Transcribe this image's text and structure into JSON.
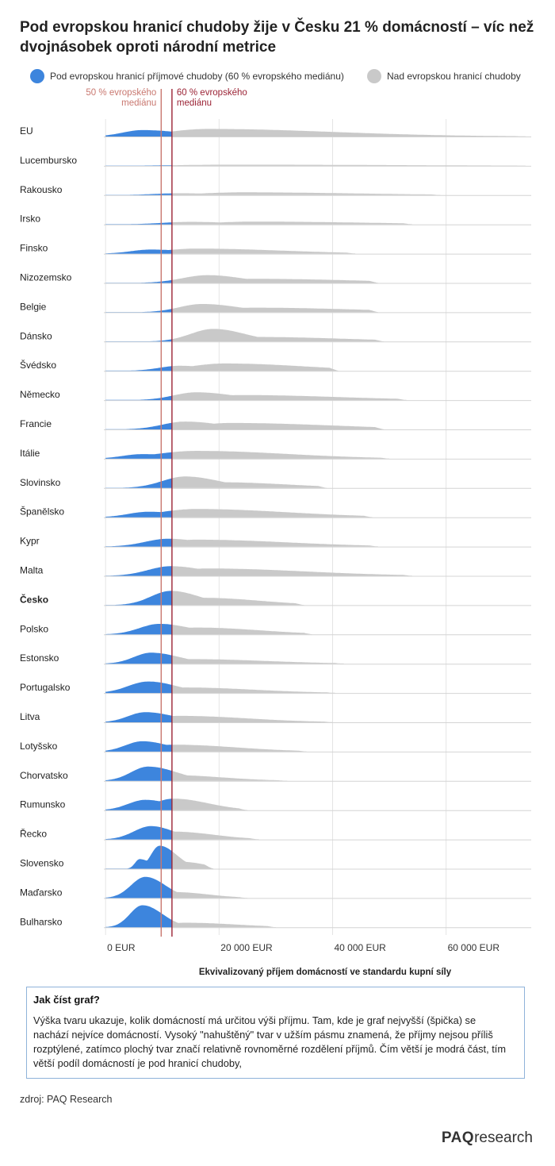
{
  "title": "Pod evropskou hranicí chudoby žije v Česku 21 % domácností – víc než dvojnásobek oproti národní metrice",
  "legend": {
    "below": {
      "label": "Pod evropskou hranicí příjmové chudoby (60 % evropského mediánu)",
      "color": "#3d85dd"
    },
    "above": {
      "label": "Nad evropskou hranicí chudoby",
      "color": "#c9c9c9"
    }
  },
  "note": {
    "heading": "Jak číst graf?",
    "text": "Výška tvaru ukazuje, kolik domácností má určitou výši příjmu. Tam, kde je graf nejvyšší (špička) se nachází nejvíce domácností. Vysoký \"nahuštěný\" tvar v užším pásmu znamená, že příjmy nejsou příliš rozptýlené, zatímco plochý tvar značí relativně rovnoměrné rozdělení příjmů. Čím větší je modrá část, tím větší podíl domácností je pod hranicí chudoby,"
  },
  "source": "zdroj: PAQ Research",
  "logo": {
    "bold": "PAQ",
    "rest": "research"
  },
  "chart_data": {
    "type": "area",
    "subtype": "ridgeline density",
    "xlabel": "Ekvivalizovaný příjem domácností ve standardu kupní síly",
    "xlim": [
      -300,
      75000
    ],
    "xticks": [
      {
        "value": 0,
        "label": "0  EUR"
      },
      {
        "value": 20000,
        "label": "20 000 EUR"
      },
      {
        "value": 40000,
        "label": "40 000 EUR"
      },
      {
        "value": 60000,
        "label": "60 000 EUR"
      }
    ],
    "reference_lines": [
      {
        "value": 9800,
        "label_lines": [
          "50 % evropského",
          "mediánu"
        ],
        "color": "#c97870",
        "label_side": "left"
      },
      {
        "value": 11700,
        "label_lines": [
          "60 % evropského",
          "mediánu"
        ],
        "color": "#9b2335",
        "label_side": "right"
      }
    ],
    "poverty_line": 11700,
    "colors": {
      "below": "#3d85dd",
      "above": "#c9c9c9",
      "grid": "#e4e4e4",
      "baseline": "#d4d4d4"
    },
    "highlight": "Česko",
    "series": [
      {
        "name": "EU",
        "max_income": 74000,
        "peak": [
          [
            6500,
            0.28
          ],
          [
            18000,
            0.33
          ]
        ],
        "spread": [
          [
            3500,
            7000
          ],
          [
            7000,
            22000
          ]
        ]
      },
      {
        "name": "Lucembursko",
        "max_income": 74000,
        "peak": [
          [
            22000,
            0.05
          ]
        ],
        "spread": [
          [
            9000,
            30000
          ]
        ]
      },
      {
        "name": "Rakousko",
        "max_income": 59000,
        "peak": [
          [
            13000,
            0.08
          ],
          [
            24000,
            0.12
          ]
        ],
        "spread": [
          [
            4500,
            7000
          ],
          [
            7000,
            20000
          ]
        ]
      },
      {
        "name": "Irsko",
        "max_income": 54000,
        "peak": [
          [
            15000,
            0.11
          ],
          [
            26000,
            0.12
          ]
        ],
        "spread": [
          [
            5000,
            7000
          ],
          [
            7000,
            20000
          ]
        ]
      },
      {
        "name": "Finsko",
        "max_income": 44000,
        "peak": [
          [
            8000,
            0.18
          ],
          [
            16000,
            0.22
          ]
        ],
        "spread": [
          [
            3500,
            6000
          ],
          [
            6000,
            15000
          ]
        ]
      },
      {
        "name": "Nizozemsko",
        "max_income": 48000,
        "peak": [
          [
            18000,
            0.34
          ],
          [
            26000,
            0.18
          ]
        ],
        "spread": [
          [
            4500,
            6000
          ],
          [
            6000,
            18000
          ]
        ]
      },
      {
        "name": "Belgie",
        "max_income": 48000,
        "peak": [
          [
            17000,
            0.36
          ],
          [
            26000,
            0.2
          ]
        ],
        "spread": [
          [
            4000,
            6500
          ],
          [
            6000,
            18000
          ]
        ]
      },
      {
        "name": "Dánsko",
        "max_income": 49000,
        "peak": [
          [
            19000,
            0.55
          ],
          [
            26000,
            0.2
          ]
        ],
        "spread": [
          [
            4000,
            5500
          ],
          [
            6000,
            16000
          ]
        ]
      },
      {
        "name": "Švédsko",
        "max_income": 41000,
        "peak": [
          [
            13000,
            0.22
          ],
          [
            21000,
            0.32
          ]
        ],
        "spread": [
          [
            3500,
            6000
          ],
          [
            6000,
            14000
          ]
        ]
      },
      {
        "name": "Německo",
        "max_income": 53000,
        "peak": [
          [
            16000,
            0.34
          ],
          [
            24000,
            0.22
          ]
        ],
        "spread": [
          [
            4000,
            6500
          ],
          [
            6500,
            17000
          ]
        ]
      },
      {
        "name": "Francie",
        "max_income": 49000,
        "peak": [
          [
            14000,
            0.34
          ],
          [
            22000,
            0.28
          ]
        ],
        "spread": [
          [
            4000,
            6500
          ],
          [
            6000,
            18000
          ]
        ]
      },
      {
        "name": "Itálie",
        "max_income": 50000,
        "peak": [
          [
            6500,
            0.2
          ],
          [
            16000,
            0.34
          ]
        ],
        "spread": [
          [
            3500,
            7000
          ],
          [
            7000,
            16000
          ]
        ]
      },
      {
        "name": "Slovinsko",
        "max_income": 39000,
        "peak": [
          [
            14000,
            0.5
          ],
          [
            20000,
            0.25
          ]
        ],
        "spread": [
          [
            4000,
            6000
          ],
          [
            6000,
            12000
          ]
        ]
      },
      {
        "name": "Španělsko",
        "max_income": 47000,
        "peak": [
          [
            7500,
            0.24
          ],
          [
            16000,
            0.36
          ]
        ],
        "spread": [
          [
            3500,
            6500
          ],
          [
            6500,
            16000
          ]
        ]
      },
      {
        "name": "Kypr",
        "max_income": 48000,
        "peak": [
          [
            11000,
            0.34
          ],
          [
            16000,
            0.3
          ]
        ],
        "spread": [
          [
            4000,
            6000
          ],
          [
            6000,
            16000
          ]
        ]
      },
      {
        "name": "Malta",
        "max_income": 54000,
        "peak": [
          [
            11500,
            0.42
          ],
          [
            18000,
            0.32
          ]
        ],
        "spread": [
          [
            4000,
            6000
          ],
          [
            6000,
            17000
          ]
        ]
      },
      {
        "name": "Česko",
        "max_income": 35000,
        "peak": [
          [
            11500,
            0.62
          ],
          [
            17000,
            0.32
          ]
        ],
        "spread": [
          [
            3500,
            5000
          ],
          [
            5000,
            10000
          ]
        ]
      },
      {
        "name": "Polsko",
        "max_income": 36500,
        "peak": [
          [
            9500,
            0.46
          ],
          [
            16000,
            0.3
          ]
        ],
        "spread": [
          [
            3500,
            5500
          ],
          [
            5500,
            11000
          ]
        ]
      },
      {
        "name": "Estonsko",
        "max_income": 42000,
        "peak": [
          [
            8000,
            0.48
          ],
          [
            15000,
            0.2
          ]
        ],
        "spread": [
          [
            3000,
            5000
          ],
          [
            5000,
            13000
          ]
        ]
      },
      {
        "name": "Portugalsko",
        "max_income": 40500,
        "peak": [
          [
            7500,
            0.5
          ],
          [
            14000,
            0.24
          ]
        ],
        "spread": [
          [
            3500,
            5000
          ],
          [
            5000,
            12000
          ]
        ]
      },
      {
        "name": "Litva",
        "max_income": 40000,
        "peak": [
          [
            7000,
            0.44
          ],
          [
            13000,
            0.28
          ]
        ],
        "spread": [
          [
            3000,
            5000
          ],
          [
            5000,
            12000
          ]
        ]
      },
      {
        "name": "Lotyšsko",
        "max_income": 35500,
        "peak": [
          [
            6500,
            0.45
          ],
          [
            12000,
            0.3
          ]
        ],
        "spread": [
          [
            3000,
            4500
          ],
          [
            5000,
            11000
          ]
        ]
      },
      {
        "name": "Chorvatsko",
        "max_income": 32000,
        "peak": [
          [
            7500,
            0.62
          ],
          [
            11500,
            0.25
          ]
        ],
        "spread": [
          [
            3000,
            5000
          ],
          [
            4500,
            9000
          ]
        ]
      },
      {
        "name": "Rumunsko",
        "max_income": 25000,
        "peak": [
          [
            7000,
            0.45
          ],
          [
            12000,
            0.5
          ]
        ],
        "spread": [
          [
            3000,
            4500
          ],
          [
            3500,
            6000
          ]
        ]
      },
      {
        "name": "Řecko",
        "max_income": 27000,
        "peak": [
          [
            8000,
            0.58
          ],
          [
            12000,
            0.34
          ]
        ],
        "spread": [
          [
            3000,
            4000
          ],
          [
            4000,
            7000
          ]
        ]
      },
      {
        "name": "Slovensko",
        "max_income": 19000,
        "peak": [
          [
            6000,
            0.42
          ],
          [
            9500,
            1.0
          ],
          [
            13500,
            0.3
          ]
        ],
        "spread": [
          [
            800,
            2000
          ],
          [
            1500,
            3000
          ],
          [
            3000,
            4000
          ]
        ]
      },
      {
        "name": "Maďarsko",
        "max_income": 25000,
        "peak": [
          [
            7000,
            0.92
          ],
          [
            12000,
            0.26
          ]
        ],
        "spread": [
          [
            2500,
            3500
          ],
          [
            3500,
            6000
          ]
        ]
      },
      {
        "name": "Bulharsko",
        "max_income": 30000,
        "peak": [
          [
            6500,
            0.96
          ],
          [
            14000,
            0.2
          ]
        ],
        "spread": [
          [
            2200,
            3500
          ],
          [
            3500,
            9000
          ]
        ]
      }
    ]
  }
}
